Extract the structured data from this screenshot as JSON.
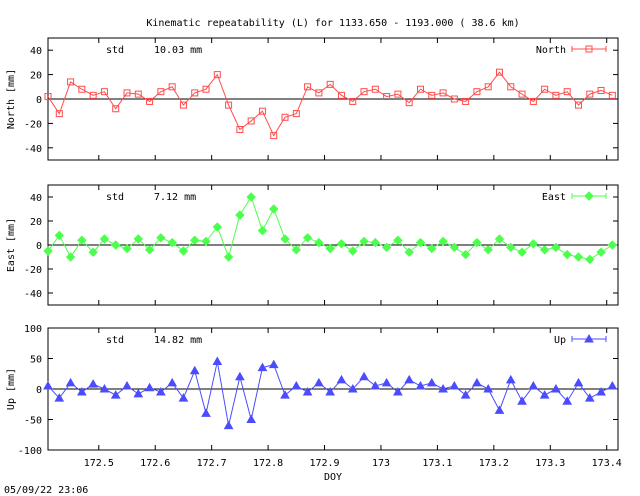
{
  "title": "Kinematic repeatability (L) for 1133.650 - 1193.000  ( 38.6 km)",
  "timestamp": "05/09/22 23:06",
  "chart_data": [
    {
      "type": "line",
      "panel": "north",
      "ylabel": "North [mm]",
      "legend": "North",
      "legend_placement": "top-right",
      "std_label": "std",
      "std_value": "10.03 mm",
      "color": "#ff4c4c",
      "marker": "square",
      "xlim": [
        172.41,
        173.42
      ],
      "ylim": [
        -50,
        50
      ],
      "yticks": [
        40,
        20,
        0,
        -20,
        -40
      ],
      "ytick_labels": [
        "40",
        "20",
        "0",
        "-20",
        "-40"
      ],
      "zero_line": true,
      "x": [
        172.41,
        172.43,
        172.45,
        172.47,
        172.49,
        172.51,
        172.53,
        172.55,
        172.57,
        172.59,
        172.61,
        172.63,
        172.65,
        172.67,
        172.69,
        172.71,
        172.73,
        172.75,
        172.77,
        172.79,
        172.81,
        172.83,
        172.85,
        172.87,
        172.89,
        172.91,
        172.93,
        172.95,
        172.97,
        172.99,
        173.01,
        173.03,
        173.05,
        173.07,
        173.09,
        173.11,
        173.13,
        173.15,
        173.17,
        173.19,
        173.21,
        173.23,
        173.25,
        173.27,
        173.29,
        173.31,
        173.33,
        173.35,
        173.37,
        173.39,
        173.41
      ],
      "y": [
        2,
        -12,
        14,
        8,
        3,
        6,
        -8,
        5,
        4,
        -2,
        6,
        10,
        -5,
        5,
        8,
        20,
        -5,
        -25,
        -18,
        -10,
        -30,
        -15,
        -12,
        10,
        5,
        12,
        3,
        -2,
        6,
        8,
        2,
        4,
        -3,
        8,
        3,
        5,
        0,
        -2,
        6,
        10,
        22,
        10,
        4,
        -2,
        8,
        3,
        6,
        -5,
        4,
        7,
        3
      ]
    },
    {
      "type": "line",
      "panel": "east",
      "ylabel": "East [mm]",
      "legend": "East",
      "legend_placement": "top-right",
      "std_label": "std",
      "std_value": "7.12 mm",
      "color": "#4cff4c",
      "marker": "diamond",
      "xlim": [
        172.41,
        173.42
      ],
      "ylim": [
        -50,
        50
      ],
      "yticks": [
        40,
        20,
        0,
        -20,
        -40
      ],
      "ytick_labels": [
        "40",
        "20",
        "0",
        "-20",
        "-40"
      ],
      "zero_line": true,
      "x": [
        172.41,
        172.43,
        172.45,
        172.47,
        172.49,
        172.51,
        172.53,
        172.55,
        172.57,
        172.59,
        172.61,
        172.63,
        172.65,
        172.67,
        172.69,
        172.71,
        172.73,
        172.75,
        172.77,
        172.79,
        172.81,
        172.83,
        172.85,
        172.87,
        172.89,
        172.91,
        172.93,
        172.95,
        172.97,
        172.99,
        173.01,
        173.03,
        173.05,
        173.07,
        173.09,
        173.11,
        173.13,
        173.15,
        173.17,
        173.19,
        173.21,
        173.23,
        173.25,
        173.27,
        173.29,
        173.31,
        173.33,
        173.35,
        173.37,
        173.39,
        173.41
      ],
      "y": [
        -5,
        8,
        -10,
        4,
        -6,
        5,
        0,
        -3,
        5,
        -4,
        6,
        2,
        -5,
        4,
        3,
        15,
        -10,
        25,
        40,
        12,
        30,
        5,
        -4,
        6,
        2,
        -3,
        1,
        -5,
        3,
        2,
        -2,
        4,
        -6,
        2,
        -3,
        3,
        -2,
        -8,
        2,
        -4,
        5,
        -2,
        -6,
        1,
        -4,
        -2,
        -8,
        -10,
        -12,
        -6,
        0
      ]
    },
    {
      "type": "line",
      "panel": "up",
      "ylabel": "Up [mm]",
      "legend": "Up",
      "legend_placement": "top-right",
      "std_label": "std",
      "std_value": "14.82 mm",
      "color": "#4c4cff",
      "marker": "triangle",
      "xlim": [
        172.41,
        173.42
      ],
      "ylim": [
        -100,
        100
      ],
      "yticks": [
        100,
        50,
        0,
        -50,
        -100
      ],
      "ytick_labels": [
        "100",
        "50",
        "0",
        "-50",
        "-100"
      ],
      "xticks": [
        172.5,
        172.6,
        172.7,
        172.8,
        172.9,
        173.0,
        173.1,
        173.2,
        173.3,
        173.4
      ],
      "xtick_labels": [
        "172.5",
        "172.6",
        "172.7",
        "172.8",
        "172.9",
        "173",
        "173.1",
        "173.2",
        "173.3",
        "173.4"
      ],
      "xlabel": "DOY",
      "zero_line": true,
      "x": [
        172.41,
        172.43,
        172.45,
        172.47,
        172.49,
        172.51,
        172.53,
        172.55,
        172.57,
        172.59,
        172.61,
        172.63,
        172.65,
        172.67,
        172.69,
        172.71,
        172.73,
        172.75,
        172.77,
        172.79,
        172.81,
        172.83,
        172.85,
        172.87,
        172.89,
        172.91,
        172.93,
        172.95,
        172.97,
        172.99,
        173.01,
        173.03,
        173.05,
        173.07,
        173.09,
        173.11,
        173.13,
        173.15,
        173.17,
        173.19,
        173.21,
        173.23,
        173.25,
        173.27,
        173.29,
        173.31,
        173.33,
        173.35,
        173.37,
        173.39,
        173.41
      ],
      "y": [
        5,
        -15,
        10,
        -5,
        8,
        0,
        -10,
        5,
        -8,
        2,
        -5,
        10,
        -15,
        30,
        -40,
        45,
        -60,
        20,
        -50,
        35,
        40,
        -10,
        5,
        -5,
        10,
        -5,
        15,
        0,
        20,
        5,
        10,
        -5,
        15,
        5,
        10,
        0,
        5,
        -10,
        10,
        0,
        -35,
        15,
        -20,
        5,
        -10,
        0,
        -20,
        10,
        -15,
        -5,
        5
      ]
    }
  ]
}
